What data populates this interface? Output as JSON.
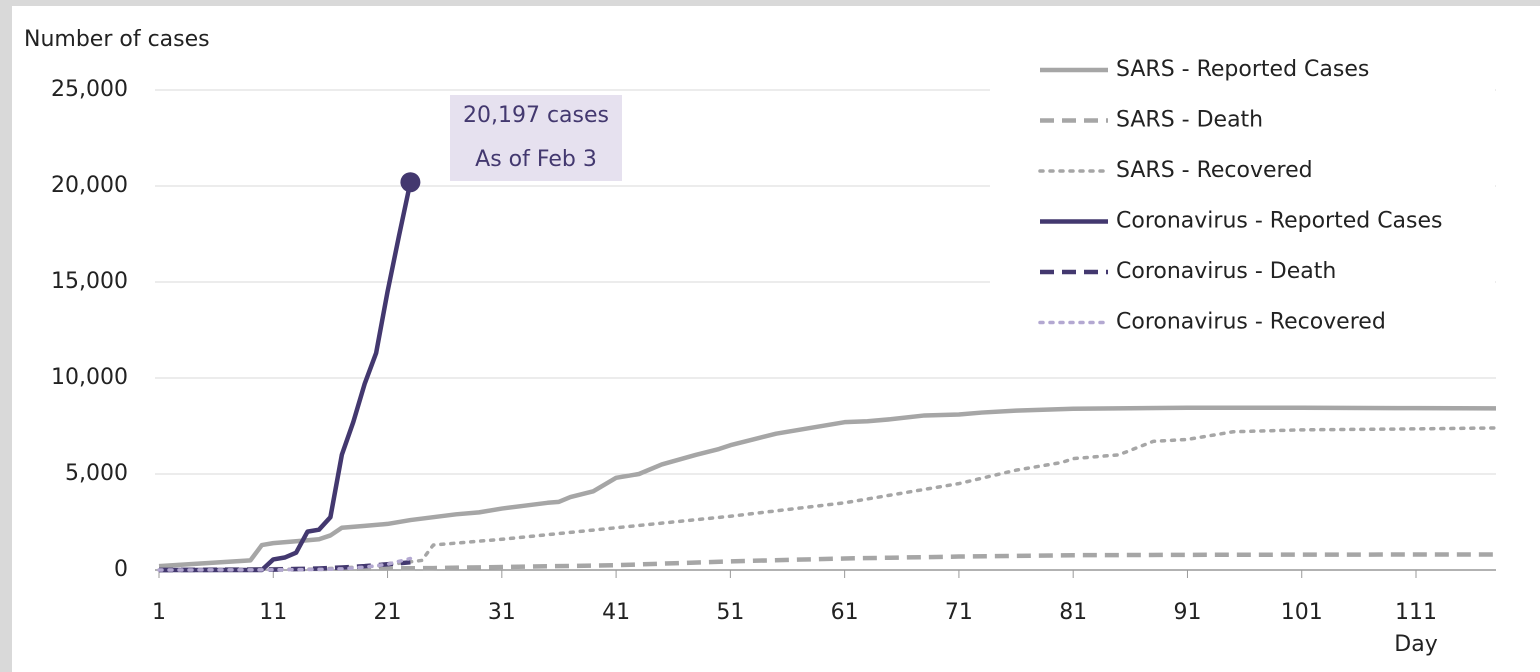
{
  "chart_data": {
    "type": "line",
    "ylabel": "Number of cases",
    "xlabel": "Day",
    "xlim": [
      1,
      118
    ],
    "xticks": [
      1,
      11,
      21,
      31,
      41,
      51,
      61,
      71,
      81,
      91,
      101,
      111
    ],
    "ylim": [
      0,
      25000
    ],
    "yticks": [
      0,
      {
        "value": 5000,
        "label": "5,000"
      },
      {
        "value": 10000,
        "label": "10,000"
      },
      {
        "value": 15000,
        "label": "15,000"
      },
      {
        "value": 20000,
        "label": "20,000"
      },
      {
        "value": 25000,
        "label": "25,000"
      }
    ],
    "grid": true,
    "legend": "upper right",
    "annotations": [
      {
        "text": "20,197 cases"
      },
      {
        "text": "As of Feb 3"
      }
    ],
    "series": [
      {
        "name": "SARS - Reported Cases",
        "color": "#a6a6a6",
        "dash": "solid",
        "x": [
          1,
          5,
          9,
          10,
          11,
          13,
          15,
          16,
          17,
          19,
          21,
          23,
          27,
          29,
          31,
          33,
          35,
          36,
          37,
          39,
          41,
          43,
          45,
          48,
          50,
          51,
          53,
          55,
          58,
          61,
          63,
          65,
          68,
          71,
          73,
          76,
          81,
          91,
          101,
          111,
          118
        ],
        "values": [
          200,
          350,
          500,
          1300,
          1400,
          1500,
          1600,
          1800,
          2200,
          2300,
          2400,
          2600,
          2900,
          3000,
          3200,
          3350,
          3500,
          3550,
          3800,
          4100,
          4800,
          5000,
          5500,
          6000,
          6300,
          6500,
          6800,
          7100,
          7400,
          7700,
          7750,
          7850,
          8050,
          8100,
          8200,
          8300,
          8400,
          8450,
          8450,
          8430,
          8420
        ]
      },
      {
        "name": "SARS - Death",
        "color": "#a6a6a6",
        "dash": "dashed",
        "x": [
          1,
          25,
          41,
          51,
          61,
          71,
          81,
          91,
          101,
          118
        ],
        "values": [
          0,
          100,
          250,
          450,
          600,
          700,
          770,
          790,
          800,
          810
        ]
      },
      {
        "name": "SARS - Recovered",
        "color": "#a6a6a6",
        "dash": "dotted",
        "x": [
          1,
          15,
          20,
          24,
          25,
          31,
          41,
          51,
          61,
          71,
          76,
          80,
          81,
          85,
          88,
          91,
          95,
          101,
          111,
          118
        ],
        "values": [
          0,
          50,
          200,
          500,
          1300,
          1600,
          2200,
          2800,
          3500,
          4500,
          5200,
          5600,
          5800,
          6000,
          6700,
          6800,
          7200,
          7300,
          7350,
          7400
        ]
      },
      {
        "name": "Coronavirus - Reported Cases",
        "color": "#43386f",
        "dash": "solid",
        "x": [
          1,
          2,
          3,
          4,
          5,
          6,
          7,
          8,
          9,
          10,
          11,
          12,
          13,
          14,
          15,
          16,
          17,
          18,
          19,
          20,
          21,
          22,
          23
        ],
        "values": [
          0,
          0,
          0,
          0,
          0,
          0,
          0,
          0,
          0,
          0,
          550,
          650,
          900,
          2000,
          2100,
          2750,
          6000,
          7700,
          9700,
          11300,
          14500,
          17400,
          20197
        ]
      },
      {
        "name": "Coronavirus - Death",
        "color": "#43386f",
        "dash": "dashed",
        "x": [
          1,
          11,
          13,
          15,
          17,
          19,
          21,
          23
        ],
        "values": [
          0,
          20,
          50,
          80,
          130,
          200,
          300,
          400
        ]
      },
      {
        "name": "Coronavirus - Recovered",
        "color": "#b3a8d1",
        "dash": "dotted",
        "x": [
          1,
          11,
          15,
          17,
          19,
          21,
          23
        ],
        "values": [
          0,
          10,
          30,
          60,
          150,
          300,
          600
        ]
      }
    ]
  }
}
